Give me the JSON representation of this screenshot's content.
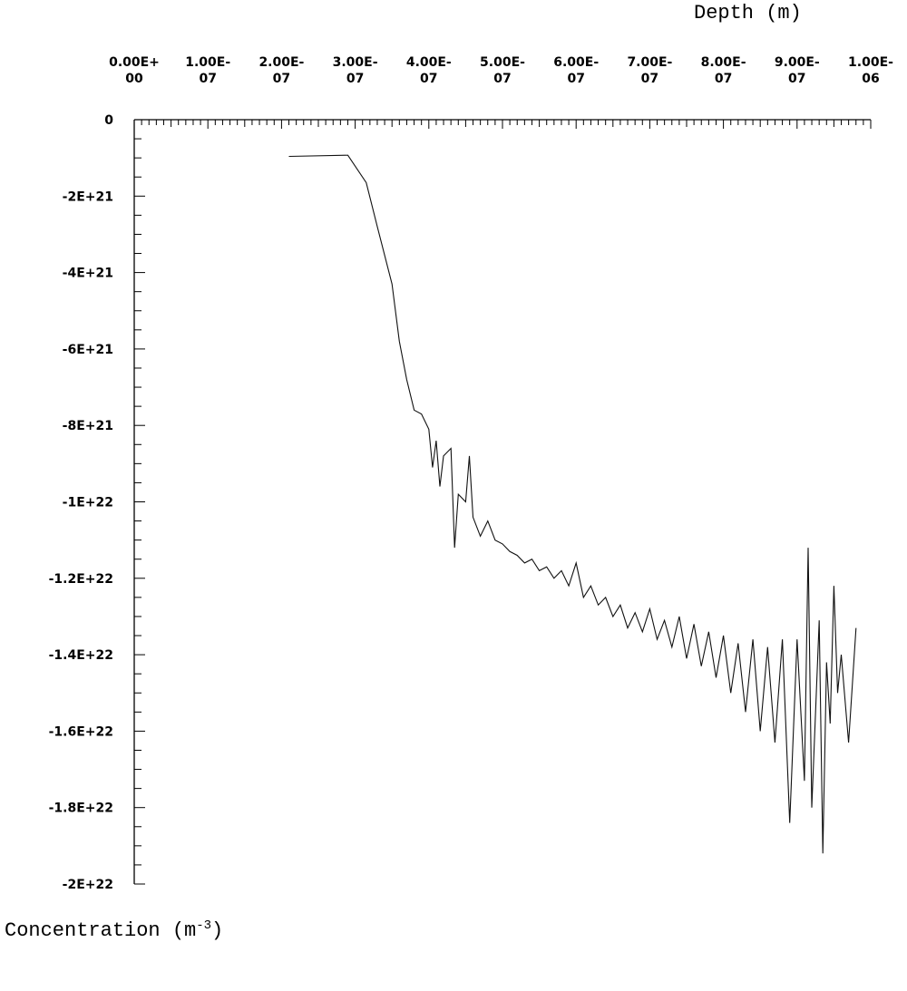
{
  "chart_data": {
    "type": "line",
    "xlabel": "Depth (m)",
    "ylabel": "Concentration (m",
    "ylabel_superscript": "-3",
    "ylabel_suffix": ")",
    "xlim": [
      0,
      1e-06
    ],
    "ylim": [
      -2e+22,
      0
    ],
    "x_axis_position": "top",
    "grid": false,
    "x_tick_labels": [
      [
        "0.00E+",
        "00"
      ],
      [
        "1.00E-",
        "07"
      ],
      [
        "2.00E-",
        "07"
      ],
      [
        "3.00E-",
        "07"
      ],
      [
        "4.00E-",
        "07"
      ],
      [
        "5.00E-",
        "07"
      ],
      [
        "6.00E-",
        "07"
      ],
      [
        "7.00E-",
        "07"
      ],
      [
        "8.00E-",
        "07"
      ],
      [
        "9.00E-",
        "07"
      ],
      [
        "1.00E-",
        "06"
      ]
    ],
    "x_tick_values": [
      0,
      1e-07,
      2e-07,
      3e-07,
      4e-07,
      5e-07,
      6e-07,
      7e-07,
      8e-07,
      9e-07,
      1e-06
    ],
    "y_tick_labels": [
      "0",
      "-2E+21",
      "-4E+21",
      "-6E+21",
      "-8E+21",
      "-1E+22",
      "-1.2E+22",
      "-1.4E+22",
      "-1.6E+22",
      "-1.8E+22",
      "-2E+22"
    ],
    "y_tick_values": [
      0,
      -2e+21,
      -4e+21,
      -6e+21,
      -8e+21,
      -1e+22,
      -1.2e+22,
      -1.4e+22,
      -1.6e+22,
      -1.8e+22,
      -2e+22
    ],
    "series": [
      {
        "points": [
          [
            2.1e-07,
            -9.6e+20
          ],
          [
            2.9e-07,
            -9.3e+20
          ],
          [
            3.15e-07,
            -1.65e+21
          ],
          [
            3.3e-07,
            -2.8e+21
          ],
          [
            3.5e-07,
            -4.3e+21
          ],
          [
            3.6e-07,
            -5.8e+21
          ],
          [
            3.7e-07,
            -6.8e+21
          ],
          [
            3.8e-07,
            -7.6e+21
          ],
          [
            3.9e-07,
            -7.7e+21
          ],
          [
            4e-07,
            -8.1e+21
          ],
          [
            4.05e-07,
            -9.1e+21
          ],
          [
            4.1e-07,
            -8.4e+21
          ],
          [
            4.15e-07,
            -9.6e+21
          ],
          [
            4.2e-07,
            -8.8e+21
          ],
          [
            4.3e-07,
            -8.6e+21
          ],
          [
            4.35e-07,
            -1.12e+22
          ],
          [
            4.4e-07,
            -9.8e+21
          ],
          [
            4.5e-07,
            -1e+22
          ],
          [
            4.55e-07,
            -8.8e+21
          ],
          [
            4.6e-07,
            -1.04e+22
          ],
          [
            4.7e-07,
            -1.09e+22
          ],
          [
            4.8e-07,
            -1.05e+22
          ],
          [
            4.9e-07,
            -1.1e+22
          ],
          [
            5e-07,
            -1.11e+22
          ],
          [
            5.1e-07,
            -1.13e+22
          ],
          [
            5.2e-07,
            -1.14e+22
          ],
          [
            5.3e-07,
            -1.16e+22
          ],
          [
            5.4e-07,
            -1.15e+22
          ],
          [
            5.5e-07,
            -1.18e+22
          ],
          [
            5.6e-07,
            -1.17e+22
          ],
          [
            5.7e-07,
            -1.2e+22
          ],
          [
            5.8e-07,
            -1.18e+22
          ],
          [
            5.9e-07,
            -1.22e+22
          ],
          [
            6e-07,
            -1.16e+22
          ],
          [
            6.1e-07,
            -1.25e+22
          ],
          [
            6.2e-07,
            -1.22e+22
          ],
          [
            6.3e-07,
            -1.27e+22
          ],
          [
            6.4e-07,
            -1.25e+22
          ],
          [
            6.5e-07,
            -1.3e+22
          ],
          [
            6.6e-07,
            -1.27e+22
          ],
          [
            6.7e-07,
            -1.33e+22
          ],
          [
            6.8e-07,
            -1.29e+22
          ],
          [
            6.9e-07,
            -1.34e+22
          ],
          [
            7e-07,
            -1.28e+22
          ],
          [
            7.1e-07,
            -1.36e+22
          ],
          [
            7.2e-07,
            -1.31e+22
          ],
          [
            7.3e-07,
            -1.38e+22
          ],
          [
            7.4e-07,
            -1.3e+22
          ],
          [
            7.5e-07,
            -1.41e+22
          ],
          [
            7.6e-07,
            -1.32e+22
          ],
          [
            7.7e-07,
            -1.43e+22
          ],
          [
            7.8e-07,
            -1.34e+22
          ],
          [
            7.9e-07,
            -1.46e+22
          ],
          [
            8e-07,
            -1.35e+22
          ],
          [
            8.1e-07,
            -1.5e+22
          ],
          [
            8.2e-07,
            -1.37e+22
          ],
          [
            8.3e-07,
            -1.55e+22
          ],
          [
            8.4e-07,
            -1.36e+22
          ],
          [
            8.5e-07,
            -1.6e+22
          ],
          [
            8.6e-07,
            -1.38e+22
          ],
          [
            8.7e-07,
            -1.63e+22
          ],
          [
            8.8e-07,
            -1.36e+22
          ],
          [
            8.9e-07,
            -1.84e+22
          ],
          [
            9e-07,
            -1.36e+22
          ],
          [
            9.1e-07,
            -1.73e+22
          ],
          [
            9.15e-07,
            -1.12e+22
          ],
          [
            9.2e-07,
            -1.8e+22
          ],
          [
            9.3e-07,
            -1.31e+22
          ],
          [
            9.35e-07,
            -1.92e+22
          ],
          [
            9.4e-07,
            -1.42e+22
          ],
          [
            9.45e-07,
            -1.58e+22
          ],
          [
            9.5e-07,
            -1.22e+22
          ],
          [
            9.55e-07,
            -1.5e+22
          ],
          [
            9.6e-07,
            -1.4e+22
          ],
          [
            9.7e-07,
            -1.63e+22
          ],
          [
            9.8e-07,
            -1.33e+22
          ]
        ]
      }
    ]
  }
}
